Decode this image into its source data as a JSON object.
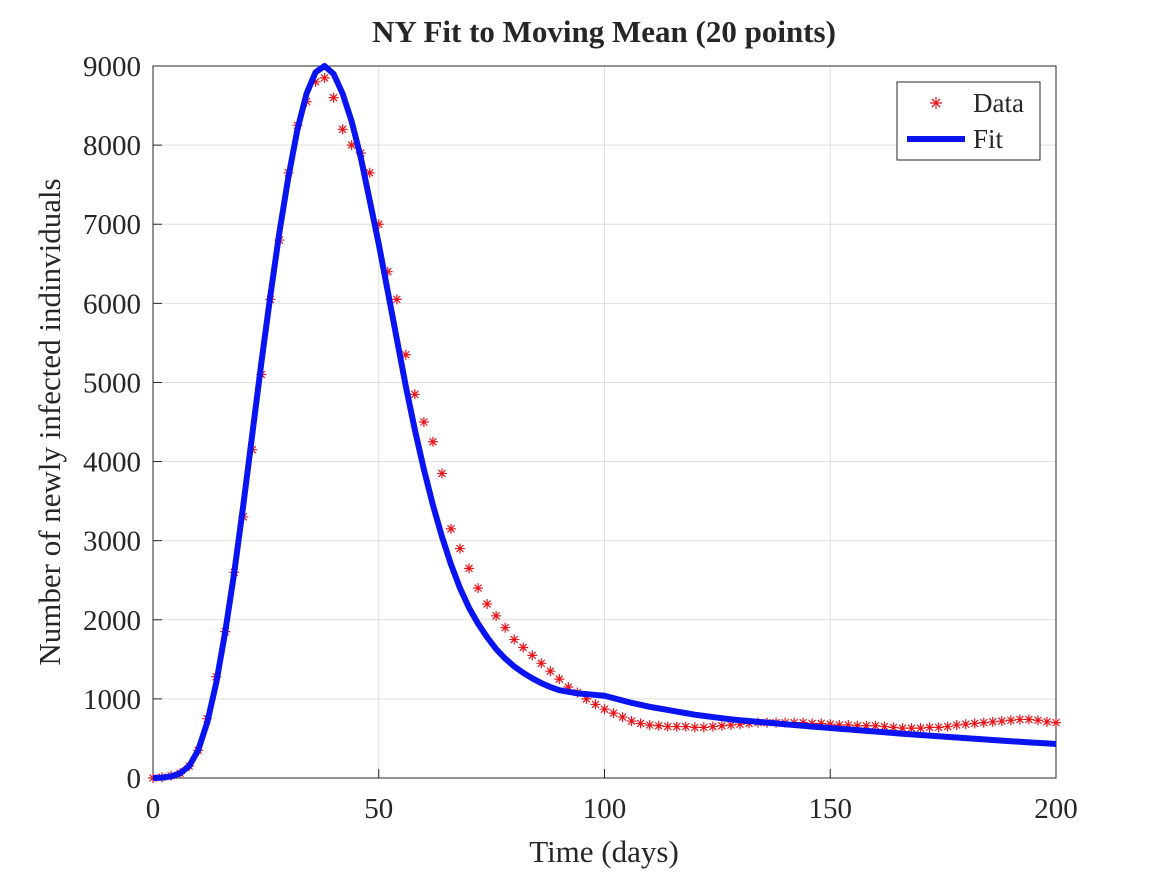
{
  "chart_data": {
    "type": "line",
    "title": "NY Fit to  Moving Mean (20 points)",
    "x_label": "Time (days)",
    "y_label": "Number of newly infected indinviduals",
    "x": [
      0,
      2,
      4,
      6,
      8,
      10,
      12,
      14,
      16,
      18,
      20,
      22,
      24,
      26,
      28,
      30,
      32,
      34,
      36,
      38,
      40,
      42,
      44,
      46,
      48,
      50,
      52,
      54,
      56,
      58,
      60,
      62,
      64,
      66,
      68,
      70,
      72,
      74,
      76,
      78,
      80,
      82,
      84,
      86,
      88,
      90,
      92,
      94,
      96,
      98,
      100,
      102,
      104,
      106,
      108,
      110,
      112,
      114,
      116,
      118,
      120,
      122,
      124,
      126,
      128,
      130,
      132,
      134,
      136,
      138,
      140,
      142,
      144,
      146,
      148,
      150,
      152,
      154,
      156,
      158,
      160,
      162,
      164,
      166,
      168,
      170,
      172,
      174,
      176,
      178,
      180,
      182,
      184,
      186,
      188,
      190,
      192,
      194,
      196,
      198,
      200
    ],
    "series": [
      {
        "name": "Data",
        "color": "#e8141a",
        "mode": "markers",
        "values": [
          0,
          10,
          30,
          60,
          150,
          350,
          750,
          1280,
          1850,
          2600,
          3300,
          4150,
          5100,
          6050,
          6800,
          7650,
          8250,
          8550,
          8800,
          8850,
          8600,
          8200,
          8000,
          7900,
          7650,
          7000,
          6400,
          6050,
          5350,
          4850,
          4500,
          4250,
          3850,
          3150,
          2900,
          2650,
          2400,
          2200,
          2050,
          1900,
          1750,
          1650,
          1550,
          1450,
          1350,
          1250,
          1150,
          1080,
          1000,
          930,
          870,
          820,
          770,
          720,
          690,
          670,
          660,
          650,
          650,
          650,
          640,
          640,
          650,
          660,
          670,
          680,
          690,
          700,
          700,
          700,
          700,
          700,
          700,
          690,
          690,
          680,
          670,
          670,
          660,
          660,
          660,
          650,
          640,
          630,
          630,
          630,
          640,
          640,
          650,
          670,
          680,
          690,
          700,
          710,
          720,
          730,
          740,
          740,
          730,
          710,
          700
        ]
      },
      {
        "name": "Fit",
        "color": "#0a14f0",
        "mode": "lines",
        "values": [
          0,
          5,
          20,
          60,
          150,
          350,
          700,
          1200,
          1850,
          2600,
          3450,
          4350,
          5250,
          6100,
          6900,
          7600,
          8200,
          8650,
          8920,
          9000,
          8900,
          8650,
          8300,
          7850,
          7300,
          6750,
          6150,
          5550,
          4950,
          4400,
          3900,
          3450,
          3050,
          2700,
          2400,
          2150,
          1950,
          1780,
          1630,
          1510,
          1410,
          1330,
          1260,
          1200,
          1150,
          1110,
          1090,
          1070,
          1060,
          1050,
          1040,
          1010,
          980,
          950,
          925,
          900,
          880,
          860,
          840,
          820,
          800,
          785,
          770,
          756,
          742,
          730,
          720,
          710,
          700,
          690,
          680,
          670,
          660,
          650,
          641,
          632,
          623,
          614,
          605,
          596,
          587,
          578,
          569,
          560,
          552,
          544,
          536,
          528,
          520,
          512,
          504,
          496,
          488,
          480,
          472,
          465,
          458,
          451,
          444,
          437,
          430
        ]
      }
    ],
    "xlim": [
      0,
      200
    ],
    "xticks": [
      0,
      50,
      100,
      150,
      200
    ],
    "ylim": [
      0,
      9000
    ],
    "yticks": [
      0,
      1000,
      2000,
      3000,
      4000,
      5000,
      6000,
      7000,
      8000,
      9000
    ],
    "grid": true,
    "legend": "top-right"
  }
}
